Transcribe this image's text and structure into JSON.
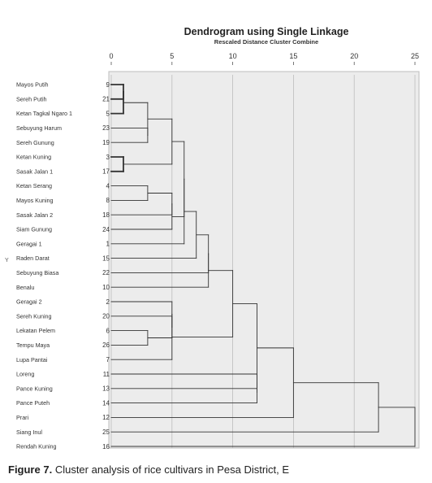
{
  "chart_data": {
    "type": "dendrogram",
    "title": "Dendrogram using Single Linkage",
    "subtitle": "Rescaled Distance Cluster Combine",
    "ylabel": "Y",
    "xlim": [
      0,
      25
    ],
    "xticks": [
      "0",
      "5",
      "10",
      "15",
      "20",
      "25"
    ],
    "leaves": [
      {
        "name": "Mayos Putih",
        "id": "9"
      },
      {
        "name": "Sereh Putih",
        "id": "21"
      },
      {
        "name": "Ketan Tagkal Ngaro 1",
        "id": "5"
      },
      {
        "name": "Sebuyung Harum",
        "id": "23"
      },
      {
        "name": "Sereh Gunung",
        "id": "19"
      },
      {
        "name": "Ketan Kuning",
        "id": "3"
      },
      {
        "name": "Sasak Jalan 1",
        "id": "17"
      },
      {
        "name": "Ketan Serang",
        "id": "4"
      },
      {
        "name": "Mayos Kuning",
        "id": "8"
      },
      {
        "name": "Sasak Jalan 2",
        "id": "18"
      },
      {
        "name": "Siam Gunung",
        "id": "24"
      },
      {
        "name": "Geragai 1",
        "id": "1"
      },
      {
        "name": "Raden Darat",
        "id": "15"
      },
      {
        "name": "Sebuyung Biasa",
        "id": "22"
      },
      {
        "name": "Benalu",
        "id": "10"
      },
      {
        "name": "Geragai 2",
        "id": "2"
      },
      {
        "name": "Sereh Kuning",
        "id": "20"
      },
      {
        "name": "Lekatan Pelem",
        "id": "6"
      },
      {
        "name": "Tempu Maya",
        "id": "26"
      },
      {
        "name": "Lupa Pantai",
        "id": "7"
      },
      {
        "name": "Loreng",
        "id": "11"
      },
      {
        "name": "Pance Kuning",
        "id": "13"
      },
      {
        "name": "Pance Puteh",
        "id": "14"
      },
      {
        "name": "Prari",
        "id": "12"
      },
      {
        "name": "Siang Inul",
        "id": "25"
      },
      {
        "name": "Rendah Kuning",
        "id": "16"
      }
    ],
    "merges": [
      {
        "a": "L0",
        "b": "L1",
        "d": 1
      },
      {
        "a": "M0",
        "b": "L2",
        "d": 1
      },
      {
        "a": "L5",
        "b": "L6",
        "d": 1
      },
      {
        "a": "L3",
        "b": "L4",
        "d": 3
      },
      {
        "a": "M1",
        "b": "M3",
        "d": 3
      },
      {
        "a": "L7",
        "b": "L8",
        "d": 3
      },
      {
        "a": "L17",
        "b": "L18",
        "d": 3
      },
      {
        "a": "M6",
        "b": "L16",
        "d": 5
      },
      {
        "a": "L15",
        "b": "M7",
        "d": 5
      },
      {
        "a": "M8",
        "b": "L19",
        "d": 5
      },
      {
        "a": "M5",
        "b": "L9",
        "d": 5
      },
      {
        "a": "M10",
        "b": "L10",
        "d": 5
      },
      {
        "a": "M4",
        "b": "M2",
        "d": 5
      },
      {
        "a": "M12",
        "b": "M11",
        "d": 6
      },
      {
        "a": "M13",
        "b": "L11",
        "d": 6
      },
      {
        "a": "M14",
        "b": "L12",
        "d": 7
      },
      {
        "a": "M15",
        "b": "L13",
        "d": 8
      },
      {
        "a": "M16",
        "b": "L14",
        "d": 8
      },
      {
        "a": "M17",
        "b": "M9",
        "d": 10
      },
      {
        "a": "L20",
        "b": "L21",
        "d": 12
      },
      {
        "a": "M19",
        "b": "L22",
        "d": 12
      },
      {
        "a": "M18",
        "b": "M20",
        "d": 12
      },
      {
        "a": "M21",
        "b": "L23",
        "d": 15
      },
      {
        "a": "M22",
        "b": "L24",
        "d": 22
      },
      {
        "a": "M23",
        "b": "L25",
        "d": 25
      }
    ]
  },
  "caption": {
    "label": "Figure 7.",
    "text": "Cluster analysis of rice cultivars in Pesa District, E"
  }
}
